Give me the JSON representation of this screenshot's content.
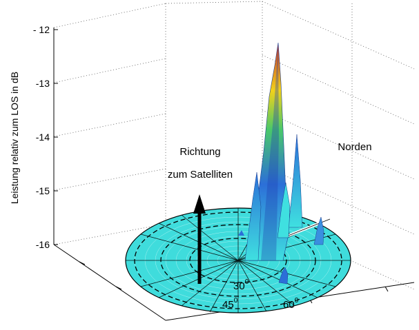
{
  "chart_data": {
    "type": "surface3d-polar",
    "ylabel": "Leistung relativ zum  LOS in dB",
    "zticks": [
      "- 12",
      "-13",
      "-14",
      "-15",
      "-16"
    ],
    "zlim": [
      -16,
      -12
    ],
    "grid": true,
    "annotations": {
      "direction_line1": "Richtung",
      "direction_line2": "zum Satelliten",
      "north": "Norden"
    },
    "elevation_labels": [
      {
        "value": "30",
        "unit": "0"
      },
      {
        "value": "45",
        "unit": "0"
      },
      {
        "value": "60",
        "unit": "0"
      }
    ],
    "peaks": [
      {
        "name": "main",
        "value": -12.3
      },
      {
        "name": "secondary",
        "value": -14.2
      },
      {
        "name": "side",
        "value": -14.8
      },
      {
        "name": "small",
        "value": -15.3
      },
      {
        "name": "small2",
        "value": -15.6
      }
    ],
    "colors": {
      "disc": "#3fdcdc",
      "disc_mesh": "#ffffff",
      "peak_low": "#3fe0e0",
      "peak_mid": "#2c6fd8",
      "peak_high": "#c8302a",
      "arrow": "#000000"
    }
  }
}
